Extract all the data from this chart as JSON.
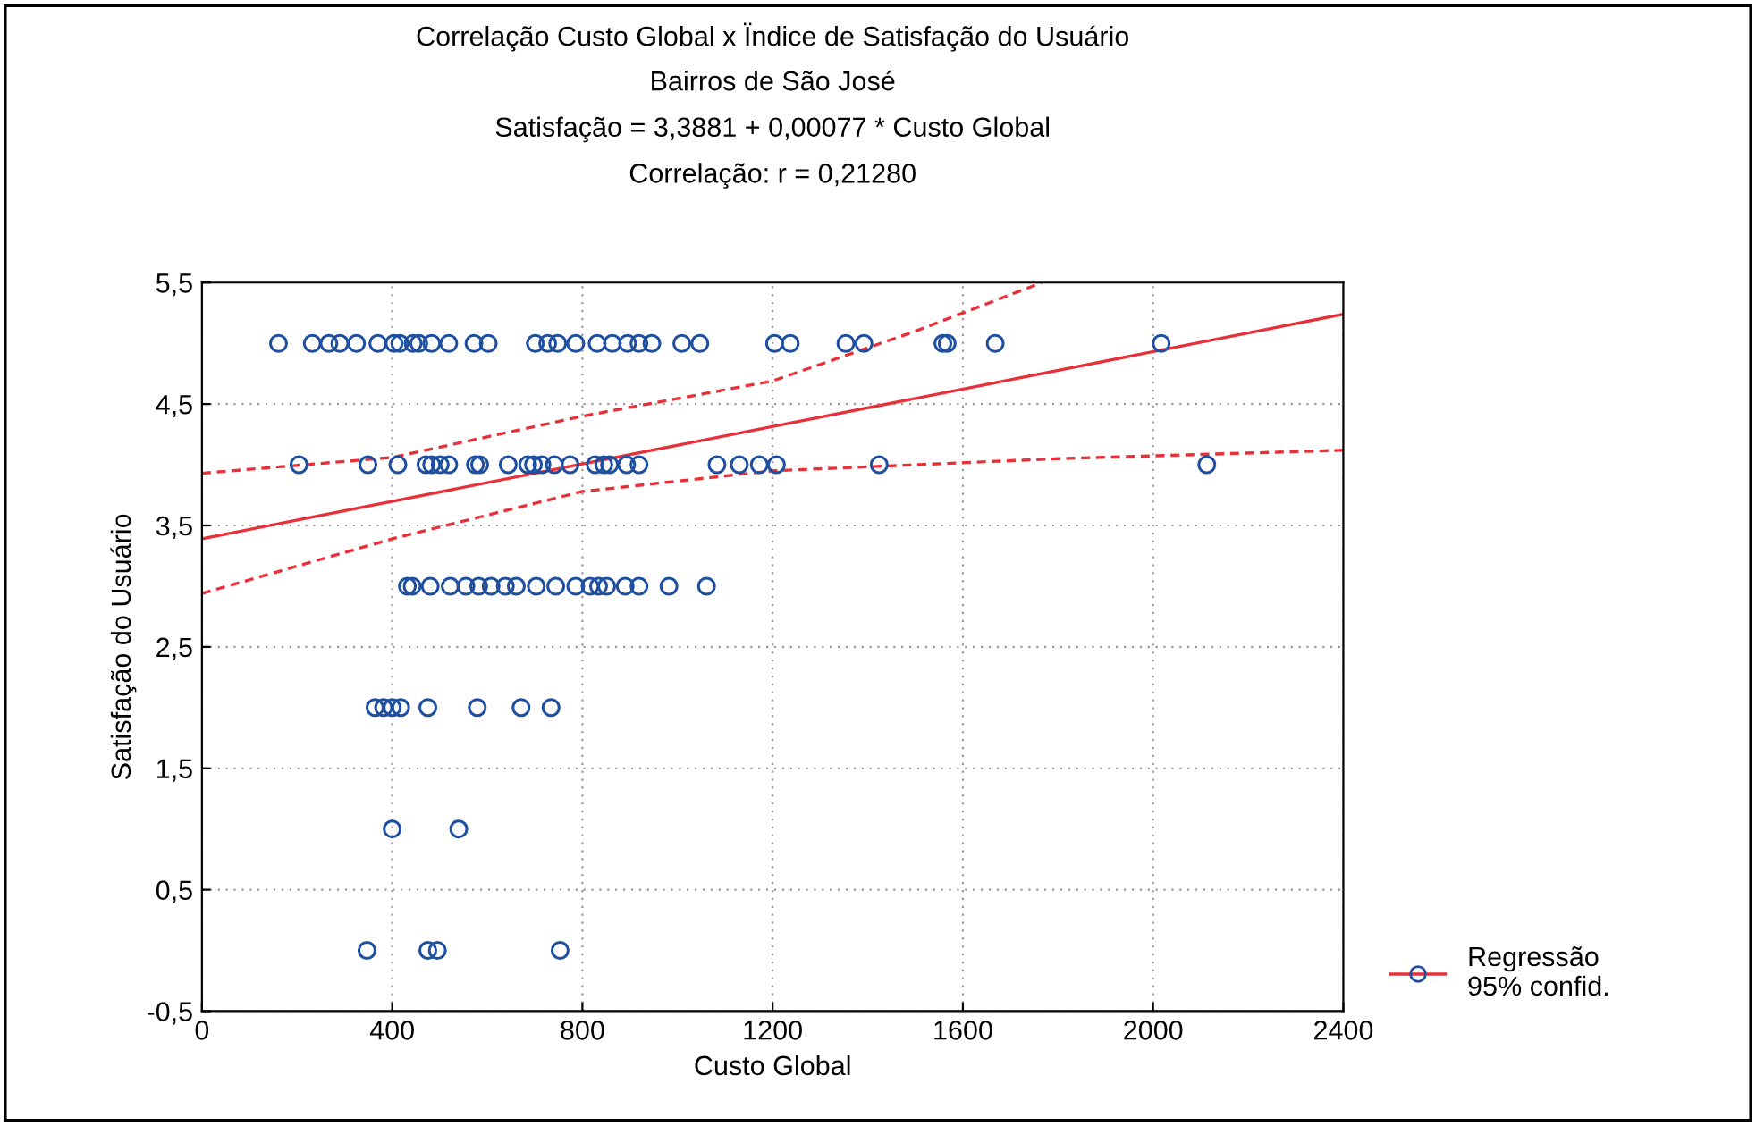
{
  "chart_data": {
    "type": "scatter",
    "title": "Correlação Custo Global x Ïndice de Satisfação do Usuário",
    "subtitle": "Bairros de São José",
    "annotations": [
      "Satisfação = 3,3881 + 0,00077 * Custo Global",
      "Correlação: r = 0,21280"
    ],
    "xlabel": "Custo Global",
    "ylabel": "Satisfação do Usuário",
    "xlim": [
      0,
      2400
    ],
    "xticks": [
      0,
      400,
      800,
      1200,
      1600,
      2000,
      2400
    ],
    "ylim": [
      -0.5,
      5.5
    ],
    "yticks": [
      {
        "value": -0.5,
        "label": "-0,5"
      },
      {
        "value": 0.5,
        "label": "0,5"
      },
      {
        "value": 1.5,
        "label": "1,5"
      },
      {
        "value": 2.5,
        "label": "2,5"
      },
      {
        "value": 3.5,
        "label": "3,5"
      },
      {
        "value": 4.5,
        "label": "4,5"
      },
      {
        "value": 5.5,
        "label": "5,5"
      }
    ],
    "grid": true,
    "legend": "bottom right",
    "series": [
      {
        "name": "Regressão\n95% confid.",
        "color": "#1f4fa0",
        "marker": "circle",
        "x": [
          161,
          232,
          267,
          290,
          325,
          370,
          404,
          416,
          444,
          456,
          483,
          519,
          572,
          602,
          701,
          727,
          748,
          786,
          831,
          863,
          895,
          919,
          946,
          1009,
          1047,
          1204,
          1237,
          1354,
          1392,
          1558,
          1567,
          1668,
          2017,
          204,
          349,
          412,
          471,
          483,
          501,
          519,
          575,
          584,
          644,
          685,
          697,
          715,
          741,
          774,
          827,
          845,
          857,
          893,
          919,
          1083,
          1130,
          1172,
          1208,
          1424,
          2113,
          432,
          442,
          480,
          522,
          555,
          582,
          608,
          638,
          661,
          703,
          744,
          786,
          816,
          834,
          851,
          890,
          919,
          982,
          1061,
          364,
          382,
          400,
          418,
          475,
          579,
          671,
          734,
          400,
          540,
          347,
          475,
          495,
          753
        ],
        "values": [
          5,
          5,
          5,
          5,
          5,
          5,
          5,
          5,
          5,
          5,
          5,
          5,
          5,
          5,
          5,
          5,
          5,
          5,
          5,
          5,
          5,
          5,
          5,
          5,
          5,
          5,
          5,
          5,
          5,
          5,
          5,
          5,
          5,
          4,
          4,
          4,
          4,
          4,
          4,
          4,
          4,
          4,
          4,
          4,
          4,
          4,
          4,
          4,
          4,
          4,
          4,
          4,
          4,
          4,
          4,
          4,
          4,
          4,
          4,
          3,
          3,
          3,
          3,
          3,
          3,
          3,
          3,
          3,
          3,
          3,
          3,
          3,
          3,
          3,
          3,
          3,
          3,
          3,
          2,
          2,
          2,
          2,
          2,
          2,
          2,
          2,
          1,
          1,
          0,
          0,
          0,
          0
        ]
      },
      {
        "type": "line",
        "color": "#e8303a",
        "line_style": "solid",
        "x": [
          0,
          2400
        ],
        "values": [
          3.39,
          5.24
        ]
      },
      {
        "type": "line",
        "color": "#e8303a",
        "line_style": "dashed",
        "x": [
          0,
          400,
          800,
          1200,
          1500,
          1766
        ],
        "values": [
          3.93,
          4.06,
          4.4,
          4.69,
          5.1,
          5.5
        ]
      },
      {
        "type": "line",
        "color": "#e8303a",
        "line_style": "dashed",
        "x": [
          0,
          400,
          800,
          1200,
          1800,
          2400
        ],
        "values": [
          2.94,
          3.39,
          3.78,
          3.95,
          4.05,
          4.12
        ]
      }
    ]
  }
}
